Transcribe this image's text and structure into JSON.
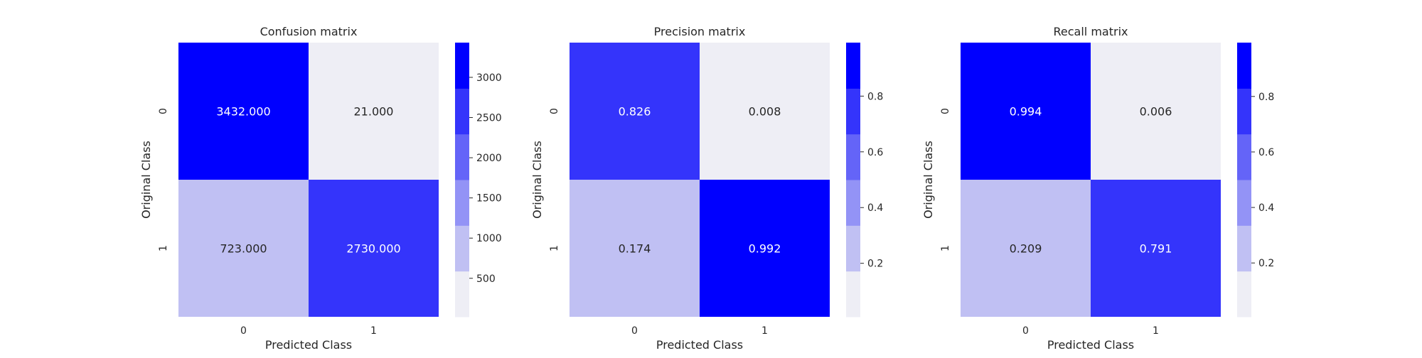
{
  "chart_data": [
    {
      "type": "heatmap",
      "title": "Confusion matrix",
      "xlabel": "Predicted Class",
      "ylabel": "Original Class",
      "x_ticks": [
        "0",
        "1"
      ],
      "y_ticks": [
        "0",
        "1"
      ],
      "values": [
        [
          3432.0,
          21.0
        ],
        [
          723.0,
          2730.0
        ]
      ],
      "cell_labels": [
        [
          "3432.000",
          "21.000"
        ],
        [
          "723.000",
          "2730.000"
        ]
      ],
      "colorbar": {
        "range": [
          21,
          3432
        ],
        "ticks": [
          500,
          1000,
          1500,
          2000,
          2500,
          3000
        ],
        "tick_labels": [
          "500",
          "1000",
          "1500",
          "2000",
          "2500",
          "3000"
        ]
      }
    },
    {
      "type": "heatmap",
      "title": "Precision matrix",
      "xlabel": "Predicted Class",
      "ylabel": "Original Class",
      "x_ticks": [
        "0",
        "1"
      ],
      "y_ticks": [
        "0",
        "1"
      ],
      "values": [
        [
          0.826,
          0.008
        ],
        [
          0.174,
          0.992
        ]
      ],
      "cell_labels": [
        [
          "0.826",
          "0.008"
        ],
        [
          "0.174",
          "0.992"
        ]
      ],
      "colorbar": {
        "range": [
          0.008,
          0.992
        ],
        "ticks": [
          0.2,
          0.4,
          0.6,
          0.8
        ],
        "tick_labels": [
          "0.2",
          "0.4",
          "0.6",
          "0.8"
        ]
      }
    },
    {
      "type": "heatmap",
      "title": "Recall matrix",
      "xlabel": "Predicted Class",
      "ylabel": "Original Class",
      "x_ticks": [
        "0",
        "1"
      ],
      "y_ticks": [
        "0",
        "1"
      ],
      "values": [
        [
          0.994,
          0.006
        ],
        [
          0.209,
          0.791
        ]
      ],
      "cell_labels": [
        [
          "0.994",
          "0.006"
        ],
        [
          "0.209",
          "0.791"
        ]
      ],
      "colorbar": {
        "range": [
          0.006,
          0.994
        ],
        "ticks": [
          0.2,
          0.4,
          0.6,
          0.8
        ],
        "tick_labels": [
          "0.2",
          "0.4",
          "0.6",
          "0.8"
        ]
      }
    }
  ],
  "colormap": [
    "#eeeef5",
    "#c0c0f3",
    "#9393f6",
    "#6464f8",
    "#3434fb",
    "#0000ff"
  ]
}
